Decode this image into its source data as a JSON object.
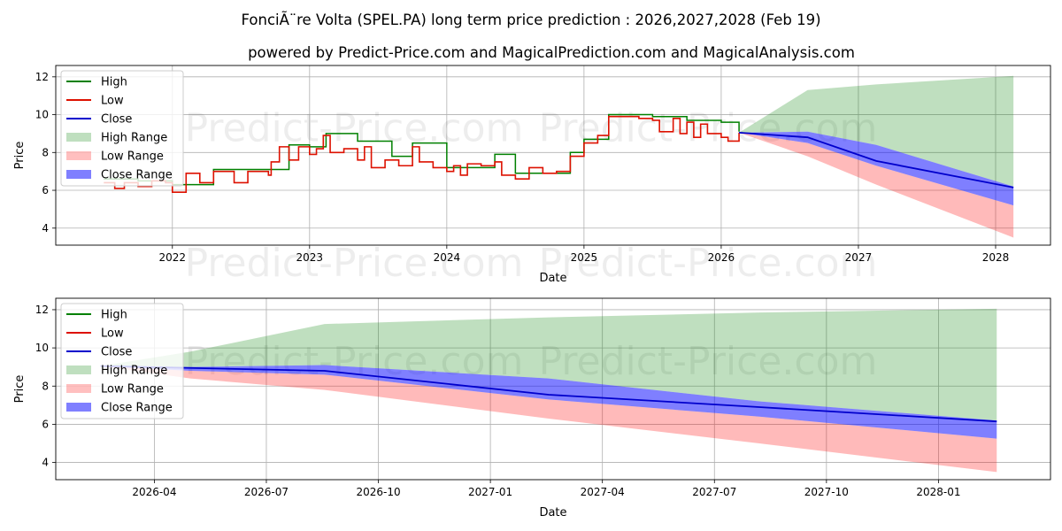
{
  "title": "FonciÃ¨re Volta (SPEL.PA) long term price prediction : 2026,2027,2028 (Feb 19)",
  "subtitle": "powered by Predict-Price.com and MagicalPrediction.com and MagicalAnalysis.com",
  "watermark": "Predict-Price.com",
  "legend": [
    {
      "label": "High",
      "kind": "line",
      "color": "#008000"
    },
    {
      "label": "Low",
      "kind": "line",
      "color": "#dd1100"
    },
    {
      "label": "Close",
      "kind": "line",
      "color": "#0000cc"
    },
    {
      "label": "High Range",
      "kind": "patch",
      "color": "#008000",
      "alpha": 0.25
    },
    {
      "label": "Low Range",
      "kind": "patch",
      "color": "#ff0000",
      "alpha": 0.25
    },
    {
      "label": "Close Range",
      "kind": "patch",
      "color": "#0000ff",
      "alpha": 0.5
    }
  ],
  "chart_data": [
    {
      "type": "line",
      "xlabel": "Date",
      "ylabel": "Price",
      "xlim": [
        2021.15,
        2028.4
      ],
      "ylim": [
        3.1,
        12.6
      ],
      "xticks": [
        2022,
        2023,
        2024,
        2025,
        2026,
        2027,
        2028
      ],
      "xtick_labels": [
        "2022",
        "2023",
        "2024",
        "2025",
        "2026",
        "2027",
        "2028"
      ],
      "yticks": [
        4,
        6,
        8,
        10,
        12
      ],
      "ytick_labels": [
        "4",
        "6",
        "8",
        "10",
        "12"
      ],
      "grid": true,
      "legend_position": "upper-left",
      "history_low": [
        [
          2021.5,
          6.4
        ],
        [
          2021.58,
          6.1
        ],
        [
          2021.65,
          6.4
        ],
        [
          2021.75,
          6.2
        ],
        [
          2021.85,
          6.5
        ],
        [
          2021.95,
          6.4
        ],
        [
          2022.0,
          5.9
        ],
        [
          2022.1,
          6.9
        ],
        [
          2022.2,
          6.4
        ],
        [
          2022.3,
          7.0
        ],
        [
          2022.45,
          6.4
        ],
        [
          2022.55,
          7.0
        ],
        [
          2022.7,
          6.8
        ],
        [
          2022.72,
          7.5
        ],
        [
          2022.78,
          8.3
        ],
        [
          2022.85,
          7.6
        ],
        [
          2022.92,
          8.3
        ],
        [
          2023.0,
          7.9
        ],
        [
          2023.05,
          8.2
        ],
        [
          2023.1,
          8.9
        ],
        [
          2023.15,
          8.0
        ],
        [
          2023.25,
          8.2
        ],
        [
          2023.35,
          7.6
        ],
        [
          2023.4,
          8.3
        ],
        [
          2023.45,
          7.2
        ],
        [
          2023.55,
          7.6
        ],
        [
          2023.65,
          7.3
        ],
        [
          2023.75,
          8.3
        ],
        [
          2023.8,
          7.5
        ],
        [
          2023.9,
          7.2
        ],
        [
          2024.0,
          7.0
        ],
        [
          2024.05,
          7.3
        ],
        [
          2024.1,
          6.8
        ],
        [
          2024.15,
          7.4
        ],
        [
          2024.25,
          7.3
        ],
        [
          2024.35,
          7.5
        ],
        [
          2024.4,
          6.8
        ],
        [
          2024.5,
          6.6
        ],
        [
          2024.6,
          7.2
        ],
        [
          2024.7,
          6.9
        ],
        [
          2024.8,
          7.0
        ],
        [
          2024.9,
          7.8
        ],
        [
          2025.0,
          8.5
        ],
        [
          2025.1,
          8.9
        ],
        [
          2025.18,
          9.9
        ],
        [
          2025.3,
          9.9
        ],
        [
          2025.4,
          9.8
        ],
        [
          2025.5,
          9.7
        ],
        [
          2025.55,
          9.1
        ],
        [
          2025.65,
          9.8
        ],
        [
          2025.7,
          9.0
        ],
        [
          2025.75,
          9.6
        ],
        [
          2025.8,
          8.8
        ],
        [
          2025.85,
          9.5
        ],
        [
          2025.9,
          9.0
        ],
        [
          2026.0,
          8.8
        ],
        [
          2026.05,
          8.6
        ],
        [
          2026.13,
          9.05
        ]
      ],
      "history_high": [
        [
          2021.5,
          6.6
        ],
        [
          2021.75,
          6.5
        ],
        [
          2022.0,
          6.3
        ],
        [
          2022.3,
          7.1
        ],
        [
          2022.7,
          7.1
        ],
        [
          2022.85,
          8.4
        ],
        [
          2023.0,
          8.3
        ],
        [
          2023.12,
          9.0
        ],
        [
          2023.35,
          8.6
        ],
        [
          2023.6,
          7.8
        ],
        [
          2023.75,
          8.5
        ],
        [
          2024.0,
          7.2
        ],
        [
          2024.35,
          7.9
        ],
        [
          2024.5,
          6.9
        ],
        [
          2024.9,
          8.0
        ],
        [
          2025.0,
          8.7
        ],
        [
          2025.18,
          10.0
        ],
        [
          2025.5,
          9.9
        ],
        [
          2025.75,
          9.7
        ],
        [
          2025.9,
          9.7
        ],
        [
          2026.0,
          9.6
        ],
        [
          2026.13,
          9.1
        ]
      ],
      "forecast_dates": [
        2026.13,
        2026.63,
        2027.13,
        2028.13
      ],
      "high_range_upper": [
        9.05,
        11.3,
        11.6,
        12.05
      ],
      "high_range_lower": [
        9.05,
        9.1,
        8.4,
        6.2
      ],
      "low_range_upper": [
        9.05,
        8.5,
        7.3,
        5.2
      ],
      "low_range_lower": [
        9.05,
        7.8,
        6.3,
        3.5
      ],
      "close_range_upper": [
        9.05,
        9.1,
        8.4,
        6.2
      ],
      "close_range_lower": [
        9.05,
        8.5,
        7.3,
        5.2
      ],
      "close": [
        9.05,
        8.8,
        7.55,
        6.15
      ]
    },
    {
      "type": "line",
      "xlabel": "Date",
      "ylabel": "Price",
      "xlim": [
        2026.03,
        2028.25
      ],
      "ylim": [
        3.1,
        12.6
      ],
      "xticks": [
        2026.25,
        2026.5,
        2026.75,
        2027.0,
        2027.25,
        2027.5,
        2027.75,
        2028.0
      ],
      "xtick_labels": [
        "2026-04",
        "2026-07",
        "2026-10",
        "2027-01",
        "2027-04",
        "2027-07",
        "2027-10",
        "2028-01"
      ],
      "yticks": [
        4,
        6,
        8,
        10,
        12
      ],
      "ytick_labels": [
        "4",
        "6",
        "8",
        "10",
        "12"
      ],
      "grid": true,
      "legend_position": "upper-left",
      "forecast_dates": [
        2026.13,
        2026.33,
        2026.63,
        2027.13,
        2027.6,
        2028.13
      ],
      "high_range_upper": [
        9.05,
        9.8,
        11.25,
        11.6,
        11.85,
        12.05
      ],
      "high_range_lower": [
        9.05,
        9.0,
        9.1,
        8.4,
        7.2,
        6.2
      ],
      "low_range_upper": [
        9.05,
        8.8,
        8.6,
        7.3,
        6.4,
        5.25
      ],
      "low_range_lower": [
        9.05,
        8.4,
        7.8,
        6.3,
        5.0,
        3.5
      ],
      "close_range_upper": [
        9.05,
        9.0,
        9.1,
        8.4,
        7.2,
        6.2
      ],
      "close_range_lower": [
        9.05,
        8.8,
        8.6,
        7.3,
        6.4,
        5.25
      ],
      "close": [
        9.05,
        8.95,
        8.8,
        7.55,
        6.9,
        6.15
      ]
    }
  ]
}
